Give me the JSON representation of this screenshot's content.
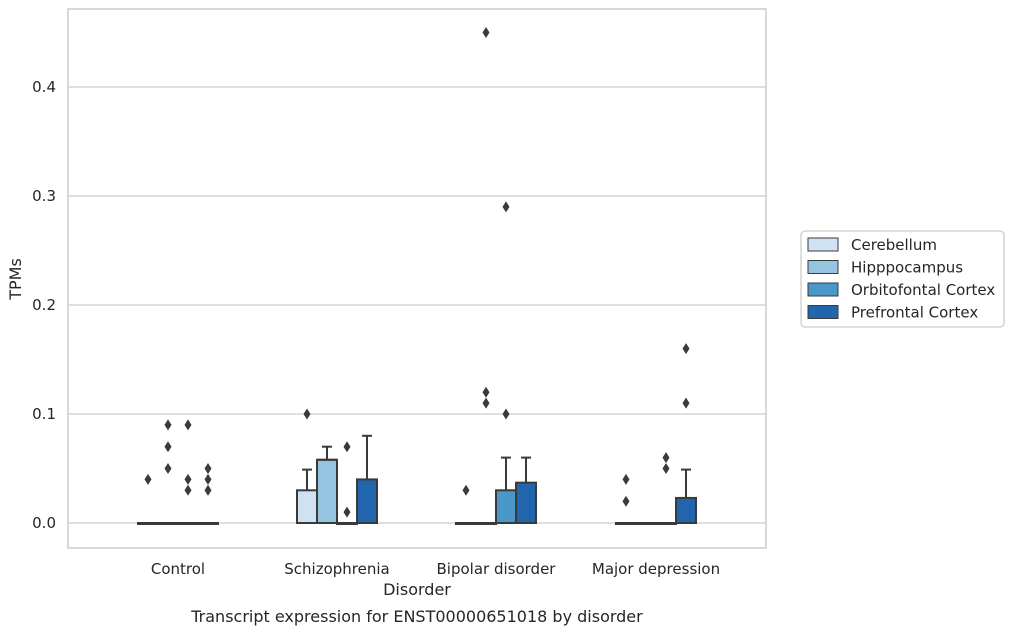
{
  "chart_data": {
    "type": "box",
    "title": "",
    "caption": "Transcript expression for ENST00000651018 by disorder",
    "xlabel": "Disorder",
    "ylabel": "TPMs",
    "ylim": [
      -0.022,
      0.475
    ],
    "yticks": [
      0.0,
      0.1,
      0.2,
      0.3,
      0.4
    ],
    "ytick_labels": [
      "0.0",
      "0.1",
      "0.2",
      "0.3",
      "0.4"
    ],
    "grid": "horizontal",
    "legend_position": "right",
    "categories": [
      "Control",
      "Schizophrenia",
      "Bipolar disorder",
      "Major depression"
    ],
    "series": [
      {
        "name": "Cerebellum",
        "color": "#d0e1f2",
        "boxes": [
          {
            "q1": 0,
            "median": 0,
            "q3": 0,
            "whisker_low": 0,
            "whisker_high": 0,
            "outliers": [
              0.04
            ]
          },
          {
            "q1": 0,
            "median": 0,
            "q3": 0.03,
            "whisker_low": 0,
            "whisker_high": 0.049,
            "outliers": [
              0.1
            ]
          },
          {
            "q1": 0,
            "median": 0,
            "q3": 0,
            "whisker_low": 0,
            "whisker_high": 0,
            "outliers": [
              0.03
            ]
          },
          {
            "q1": 0,
            "median": 0,
            "q3": 0,
            "whisker_low": 0,
            "whisker_high": 0,
            "outliers": [
              0.02,
              0.04
            ]
          }
        ]
      },
      {
        "name": "Hipppocampus",
        "color": "#94c4df",
        "boxes": [
          {
            "q1": 0,
            "median": 0,
            "q3": 0,
            "whisker_low": 0,
            "whisker_high": 0,
            "outliers": [
              0.05,
              0.07,
              0.09
            ]
          },
          {
            "q1": 0,
            "median": 0.058,
            "q3": 0.058,
            "whisker_low": 0,
            "whisker_high": 0.07,
            "outliers": []
          },
          {
            "q1": 0,
            "median": 0,
            "q3": 0,
            "whisker_low": 0,
            "whisker_high": 0,
            "outliers": [
              0.11,
              0.12,
              0.45
            ]
          },
          {
            "q1": 0,
            "median": 0,
            "q3": 0,
            "whisker_low": 0,
            "whisker_high": 0,
            "outliers": []
          }
        ]
      },
      {
        "name": "Orbitofontal Cortex",
        "color": "#4a98c9",
        "boxes": [
          {
            "q1": 0,
            "median": 0,
            "q3": 0,
            "whisker_low": 0,
            "whisker_high": 0,
            "outliers": [
              0.03,
              0.04,
              0.09
            ]
          },
          {
            "q1": 0,
            "median": 0,
            "q3": 0,
            "whisker_low": 0,
            "whisker_high": 0,
            "outliers": [
              0.01,
              0.07
            ]
          },
          {
            "q1": 0,
            "median": 0,
            "q3": 0.03,
            "whisker_low": 0,
            "whisker_high": 0.06,
            "outliers": [
              0.1,
              0.29
            ]
          },
          {
            "q1": 0,
            "median": 0,
            "q3": 0,
            "whisker_low": 0,
            "whisker_high": 0,
            "outliers": [
              0.05,
              0.06
            ]
          }
        ]
      },
      {
        "name": "Prefrontal Cortex",
        "color": "#2166ac",
        "boxes": [
          {
            "q1": 0,
            "median": 0,
            "q3": 0,
            "whisker_low": 0,
            "whisker_high": 0,
            "outliers": [
              0.03,
              0.04,
              0.05
            ]
          },
          {
            "q1": 0,
            "median": 0,
            "q3": 0.04,
            "whisker_low": 0,
            "whisker_high": 0.08,
            "outliers": []
          },
          {
            "q1": 0,
            "median": 0,
            "q3": 0.037,
            "whisker_low": 0,
            "whisker_high": 0.06,
            "outliers": []
          },
          {
            "q1": 0,
            "median": 0,
            "q3": 0.023,
            "whisker_low": 0,
            "whisker_high": 0.049,
            "outliers": [
              0.11,
              0.16
            ]
          }
        ]
      }
    ]
  }
}
